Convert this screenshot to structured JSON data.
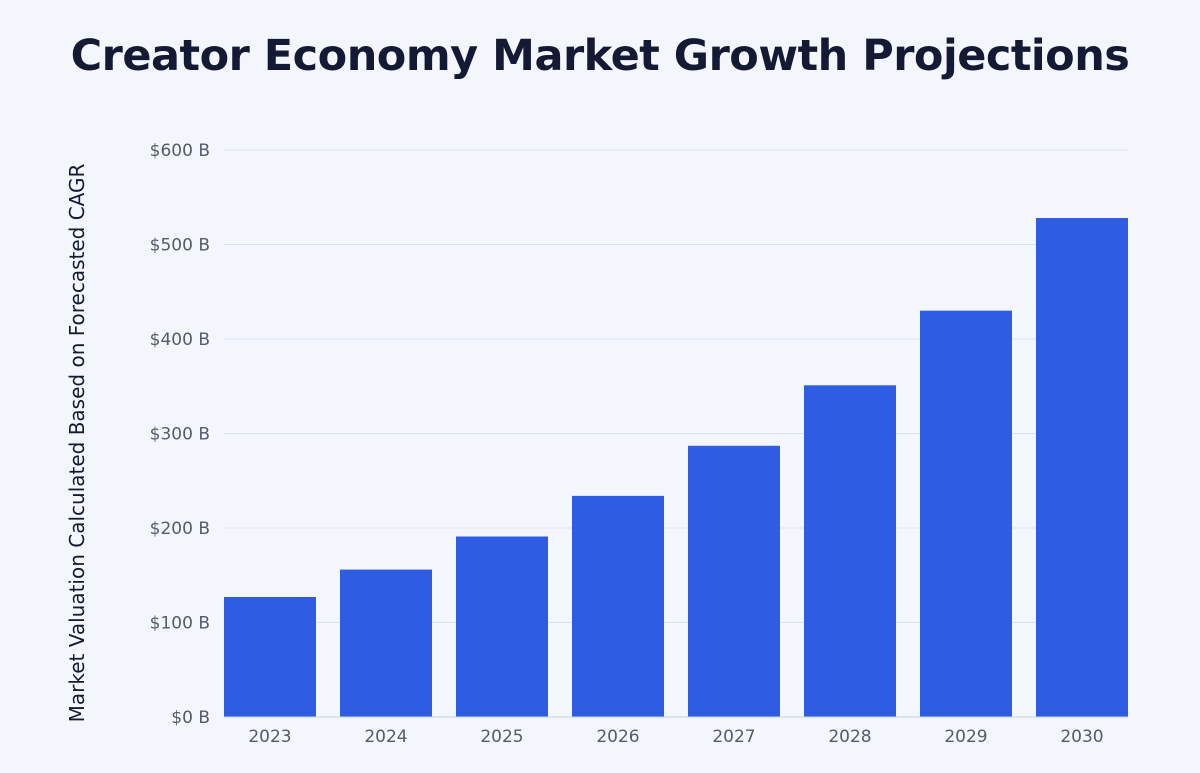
{
  "chart_data": {
    "type": "bar",
    "title": "Creator Economy Market Growth Projections",
    "xlabel": "",
    "ylabel": "Market Valuation Calculated Based on Forecasted CAGR",
    "categories": [
      "2023",
      "2024",
      "2025",
      "2026",
      "2027",
      "2028",
      "2029",
      "2030"
    ],
    "values": [
      127,
      156,
      191,
      234,
      287,
      351,
      430,
      528
    ],
    "ylim": [
      0,
      600
    ],
    "y_ticks": [
      {
        "value": 0,
        "label": "$0 B"
      },
      {
        "value": 100,
        "label": "$100 B"
      },
      {
        "value": 200,
        "label": "$200 B"
      },
      {
        "value": 300,
        "label": "$300 B"
      },
      {
        "value": 400,
        "label": "$400 B"
      },
      {
        "value": 500,
        "label": "$500 B"
      },
      {
        "value": 600,
        "label": "$600 B"
      }
    ],
    "grid": true,
    "legend": "none",
    "bar_color": "#2e5ce3",
    "grid_color": "#dde3ee"
  }
}
